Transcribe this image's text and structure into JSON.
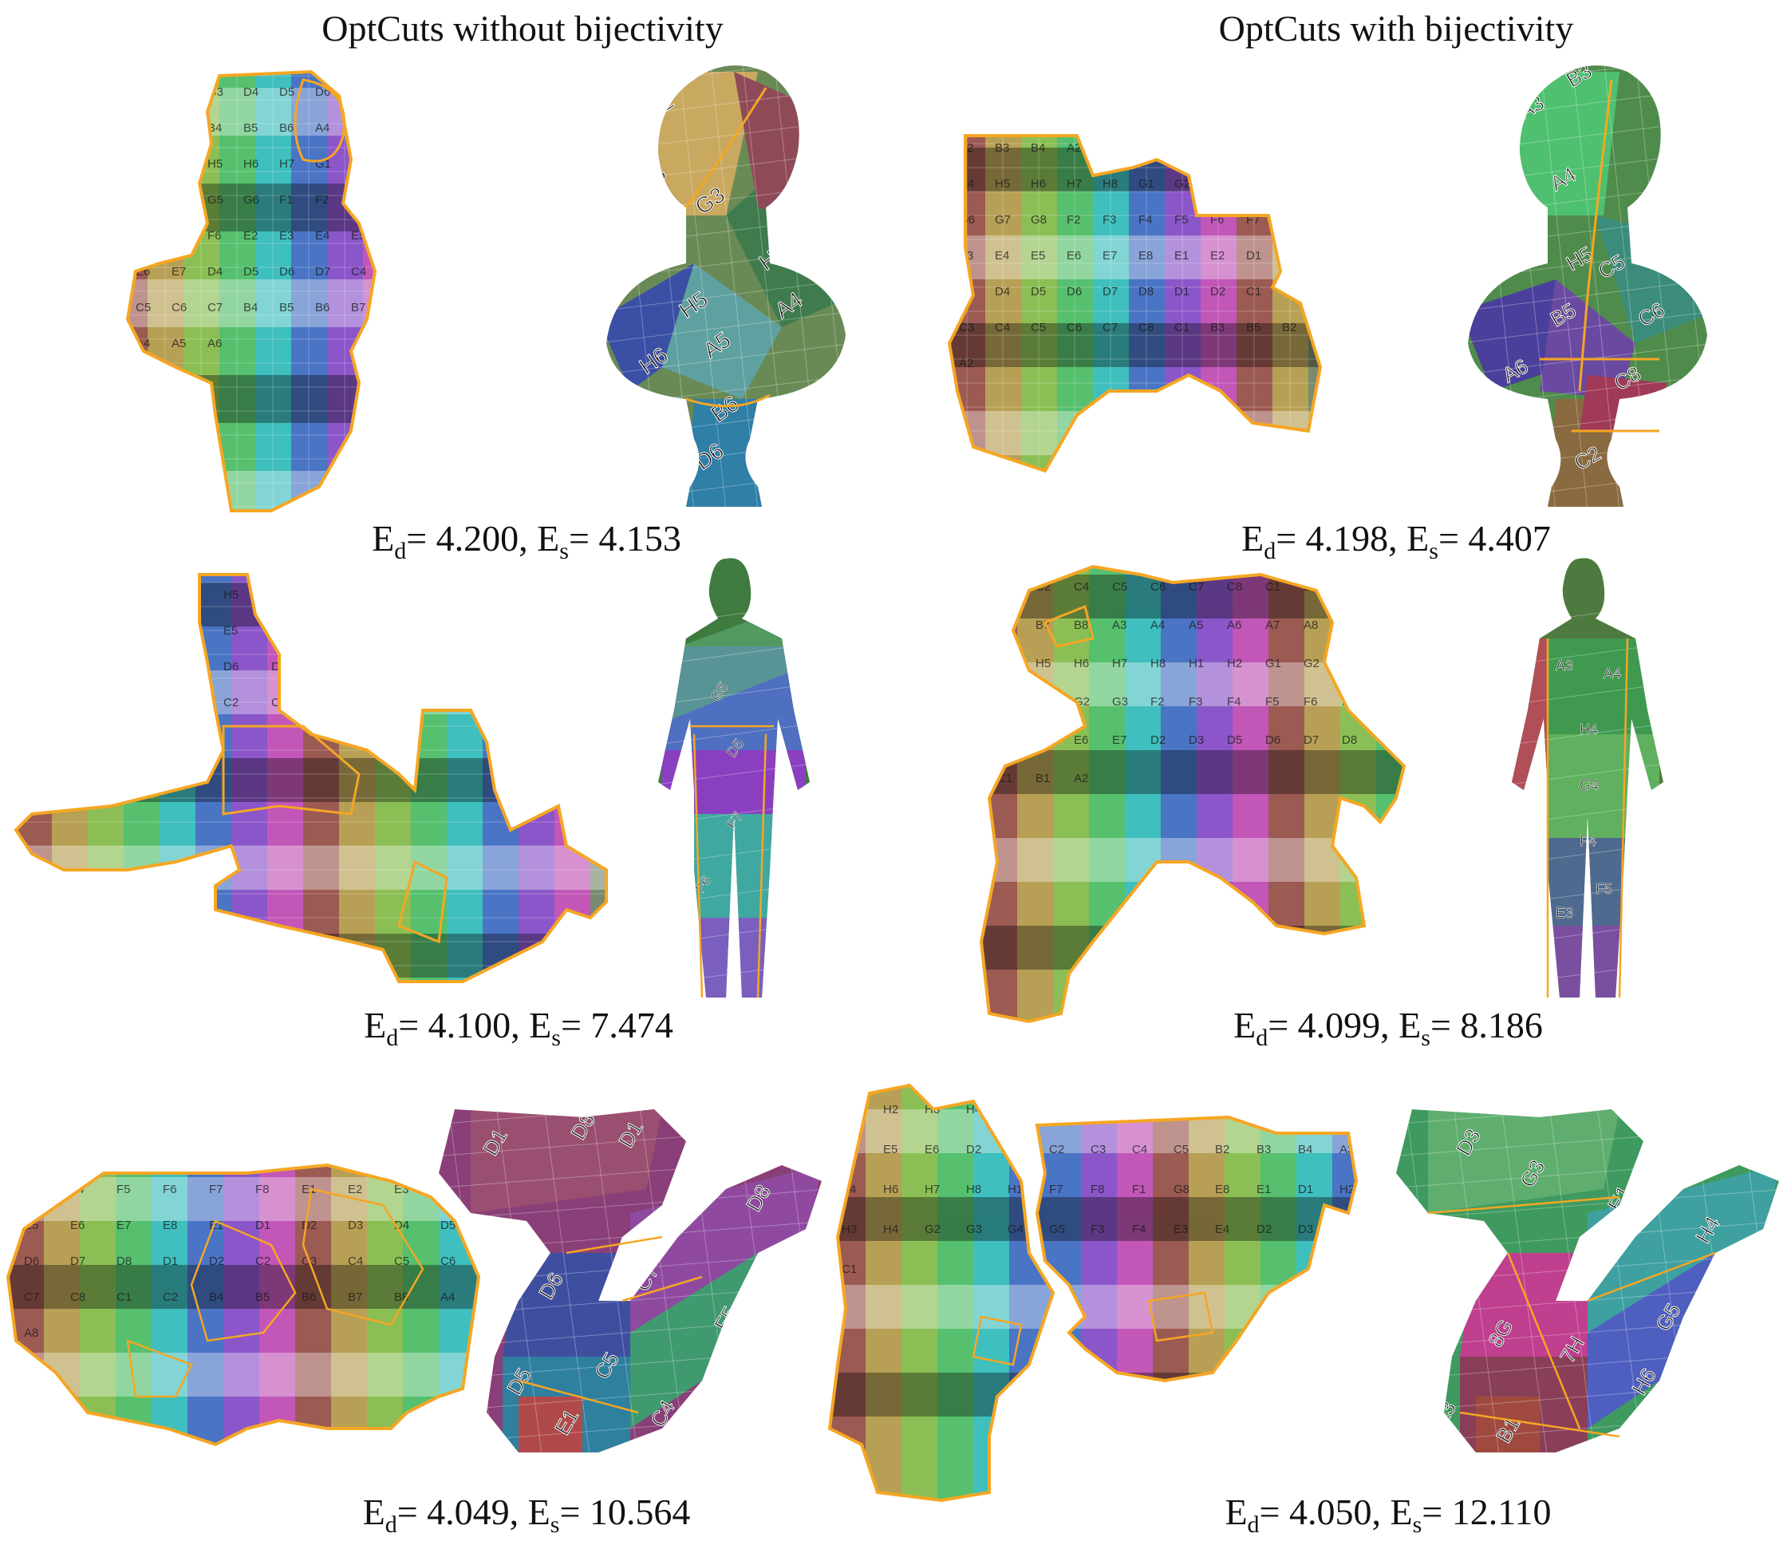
{
  "headers": {
    "left": "OptCuts without bijectivity",
    "right": "OptCuts with bijectivity"
  },
  "rows": [
    {
      "name": "bust",
      "left": {
        "label_d": "d",
        "label_s": "s",
        "ed": "4.200",
        "es": "4.153"
      },
      "right": {
        "label_d": "d",
        "label_s": "s",
        "ed": "4.198",
        "es": "4.407"
      }
    },
    {
      "name": "human",
      "left": {
        "label_d": "d",
        "label_s": "s",
        "ed": "4.100",
        "es": "7.474"
      },
      "right": {
        "label_d": "d",
        "label_s": "s",
        "ed": "4.099",
        "es": "8.186"
      }
    },
    {
      "name": "dragon",
      "left": {
        "label_d": "d",
        "label_s": "s",
        "ed": "4.049",
        "es": "10.564"
      },
      "right": {
        "label_d": "d",
        "label_s": "s",
        "ed": "4.050",
        "es": "12.110"
      }
    }
  ],
  "texture_labels": {
    "bust_left_uv": [
      "E4",
      "E5",
      "G3",
      "D4",
      "D5",
      "D6",
      "D7",
      "C4",
      "C5",
      "B4",
      "B5",
      "B6",
      "A4",
      "A5",
      "A6",
      "H4",
      "H5",
      "H6",
      "H7",
      "G1",
      "G2",
      "G3",
      "G4",
      "G5",
      "G6",
      "F1",
      "F2",
      "F3",
      "F4",
      "F5",
      "F6",
      "E2",
      "E3",
      "E4",
      "E5",
      "E6",
      "E7",
      "D4",
      "D5",
      "D6",
      "D7",
      "C4",
      "C5",
      "C6",
      "C7",
      "B4",
      "B5",
      "B6",
      "B7",
      "A4",
      "A5",
      "A6"
    ],
    "bust_left_mesh": [
      "F2",
      "F3",
      "G3",
      "H4",
      "H5",
      "A4",
      "H6",
      "A5",
      "B6",
      "D6",
      "C6"
    ],
    "bust_right_uv": [
      "B2",
      "B3",
      "B4",
      "A2",
      "A3",
      "A4",
      "A6",
      "H1",
      "H2",
      "H3",
      "H4",
      "H5",
      "H6",
      "H7",
      "H8",
      "G1",
      "G2",
      "G3",
      "G4",
      "G5",
      "G6",
      "G7",
      "G8",
      "F2",
      "F3",
      "F4",
      "F5",
      "F6",
      "F7",
      "F8",
      "E3",
      "E4",
      "E5",
      "E6",
      "E7",
      "E8",
      "E1",
      "E2",
      "D1",
      "D2",
      "D3",
      "D4",
      "D5",
      "D6",
      "D7",
      "D8",
      "D1",
      "D2",
      "C1",
      "C2",
      "C3",
      "C4",
      "C5",
      "C6",
      "C7",
      "C8",
      "C1",
      "B3",
      "B5",
      "B2",
      "A2"
    ],
    "bust_right_mesh": [
      "A3",
      "B3",
      "A4",
      "H5",
      "C5",
      "B5",
      "C6",
      "A6",
      "C8",
      "C1",
      "C2",
      "D2"
    ],
    "human_left_uv": [
      "C5",
      "B5",
      "A5",
      "A6",
      "H5",
      "H6",
      "G6",
      "G7",
      "F5",
      "F6",
      "F7",
      "F8",
      "G3",
      "F3",
      "E3",
      "E4",
      "E5",
      "E6",
      "E7",
      "E8",
      "E3",
      "E4",
      "E5",
      "D1",
      "D2",
      "D3",
      "D4",
      "D5",
      "D6",
      "D7",
      "D8",
      "D1",
      "D2",
      "D3",
      "C4",
      "C5",
      "C6",
      "C7",
      "C8",
      "C1",
      "C2",
      "C3",
      "B6",
      "B7",
      "B8",
      "B1",
      "B2",
      "B3",
      "B4",
      "B5",
      "A3"
    ],
    "human_left_mesh": [
      "G5",
      "D5",
      "F7",
      "F6"
    ],
    "human_right_uv": [
      "D4",
      "C2",
      "C4",
      "C5",
      "C6",
      "C7",
      "C8",
      "C1",
      "B3",
      "B4",
      "B5",
      "B6",
      "B7",
      "B8",
      "A3",
      "A4",
      "A5",
      "A6",
      "A7",
      "A8",
      "A1",
      "H3",
      "H4",
      "H5",
      "H6",
      "H7",
      "H8",
      "H1",
      "H2",
      "G1",
      "G2",
      "G3",
      "G4",
      "G5",
      "G6",
      "G2",
      "G3",
      "F2",
      "F3",
      "F4",
      "F5",
      "F6",
      "E2",
      "E3",
      "E4",
      "E5",
      "E6",
      "E7",
      "D2",
      "D3",
      "D5",
      "D6",
      "D7",
      "D8",
      "C2",
      "C1",
      "B1",
      "A2"
    ],
    "human_right_mesh": [
      "A3",
      "A4",
      "H4",
      "G4",
      "F4",
      "F5",
      "E3"
    ],
    "dragon_left_uv": [
      "F3",
      "F4",
      "F5",
      "F6",
      "F7",
      "F8",
      "E1",
      "E2",
      "E3",
      "E4",
      "E5",
      "E6",
      "E7",
      "E8",
      "E1",
      "D1",
      "D2",
      "D3",
      "D4",
      "D5",
      "D6",
      "D7",
      "D8",
      "D1",
      "D2",
      "C2",
      "C3",
      "C4",
      "C5",
      "C6",
      "C7",
      "C8",
      "C1",
      "C2",
      "B4",
      "B5",
      "B6",
      "B7",
      "B8",
      "A4",
      "A8"
    ],
    "dragon_left_mesh": [
      "D1",
      "D8",
      "D1",
      "D8",
      "D6",
      "C7",
      "D5",
      "C5",
      "E1",
      "C4",
      "F5"
    ],
    "dragon_right_uv": [
      "A2",
      "H2",
      "H3",
      "H4",
      "G2",
      "G3",
      "G4",
      "G5",
      "F2",
      "F3",
      "F4",
      "E2",
      "E3",
      "E4",
      "E5",
      "E6",
      "D2",
      "D3",
      "C2",
      "C3",
      "C4",
      "C5",
      "B2",
      "B3",
      "B4",
      "A3",
      "A4",
      "H6",
      "H7",
      "H8",
      "H1",
      "F7",
      "F8",
      "F1",
      "G8",
      "E8",
      "E1",
      "D1",
      "H2",
      "H3",
      "H4",
      "G2",
      "G3",
      "G4",
      "G5",
      "F3",
      "F4",
      "E3",
      "E4",
      "D2",
      "D3",
      "D4",
      "C1"
    ],
    "dragon_right_mesh": [
      "D3",
      "G3",
      "E1",
      "H4",
      "G5",
      "8H",
      "8G",
      "7H",
      "H6",
      "B1",
      "A3"
    ]
  },
  "colors": {
    "cut_outline": "#f5a623",
    "background": "#ffffff",
    "text": "#111111"
  }
}
